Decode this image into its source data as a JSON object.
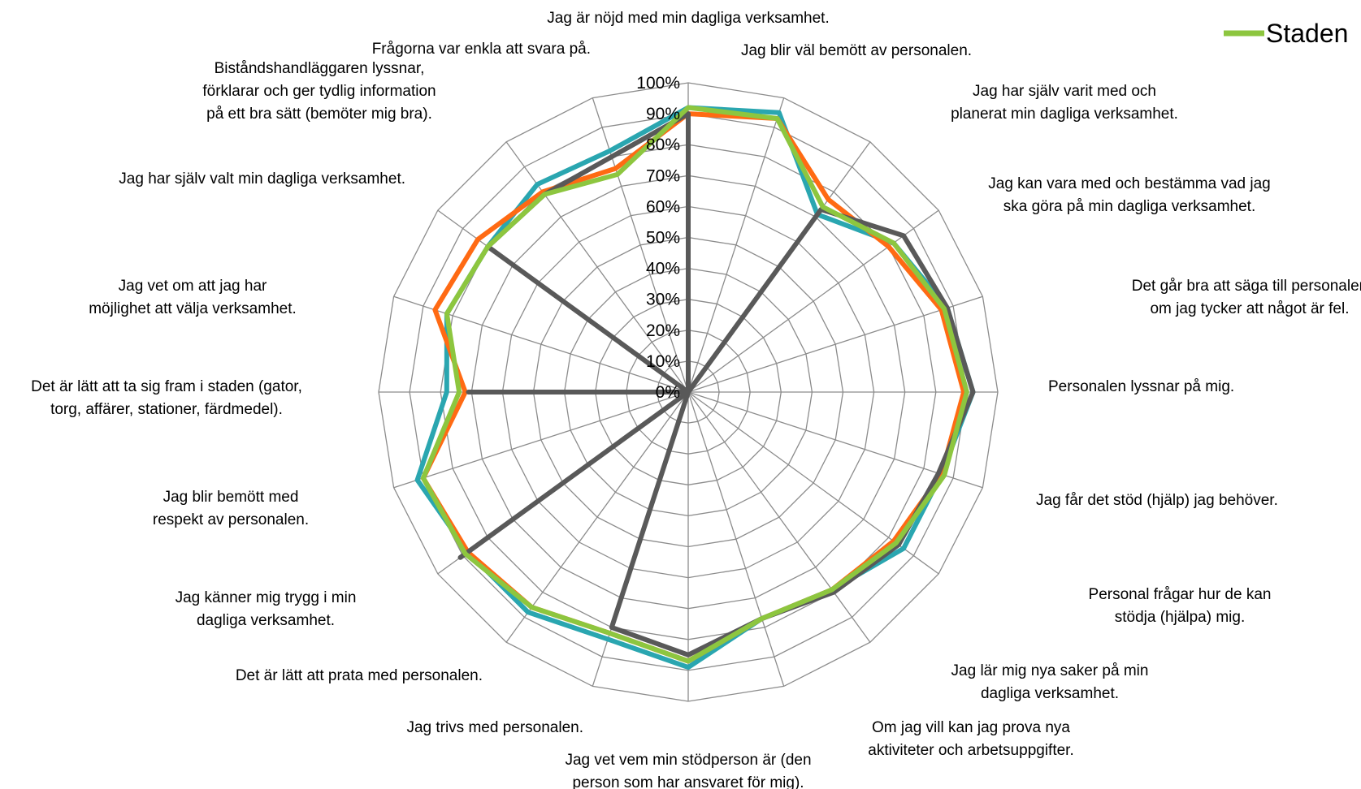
{
  "chart_data": {
    "type": "radar",
    "title": "",
    "axes": [
      "Jag är nöjd med min dagliga verksamhet.",
      "Jag blir väl bemött av personalen.",
      "Jag har själv varit med och planerat min dagliga verksamhet.",
      "Jag kan vara med och bestämma vad jag ska göra på min dagliga verksamhet.",
      "Det går bra att säga till personalen om jag tycker att något är fel.",
      "Personalen lyssnar på mig.",
      "Jag får det stöd (hjälp) jag behöver.",
      "Personal frågar hur de kan stödja (hjälpa) mig.",
      "Jag lär mig nya saker på min dagliga verksamhet.",
      "Om jag vill kan jag prova nya aktiviteter och arbetsuppgifter.",
      "Jag vet vem min stödperson är (den person som har ansvaret för mig).",
      "Jag trivs med personalen.",
      "Det är lätt att prata med personalen.",
      "Jag känner mig trygg i min dagliga verksamhet.",
      "Jag blir bemött med respekt av personalen.",
      "Det är lätt att ta sig fram i staden (gator, torg, affärer, stationer, färdmedel).",
      "Jag vet om att jag har möjlighet att välja verksamhet.",
      "Jag har själv valt min dagliga verksamhet.",
      "Biståndshandläggaren lyssnar, förklarar och ger tydlig information på ett bra sätt (bemöter mig bra).",
      "Frågorna var enkla att svara på."
    ],
    "r_ticks": [
      "0%",
      "10%",
      "20%",
      "30%",
      "40%",
      "50%",
      "60%",
      "70%",
      "80%",
      "90%",
      "100%"
    ],
    "rlim": [
      0,
      100
    ],
    "grid": true,
    "legend_position": "top-right",
    "legend_entries": [
      "Staden"
    ],
    "series": [
      {
        "color": "#2aa6b0",
        "values": [
          92,
          95,
          71,
          82,
          88,
          92,
          86,
          86,
          79,
          77,
          89,
          84,
          88,
          88,
          92,
          78,
          82,
          80,
          83,
          82
        ]
      },
      {
        "color": "#ff6a13",
        "values": [
          90,
          93,
          77,
          80,
          86,
          89,
          86,
          82,
          79,
          77,
          87,
          82,
          86,
          88,
          90,
          72,
          86,
          84,
          80,
          76
        ]
      },
      {
        "color": "#595959",
        "values": [
          90,
          0,
          73,
          86,
          88,
          92,
          85,
          84,
          80,
          77,
          85,
          80,
          0,
          91,
          0,
          71,
          0,
          80,
          79,
          80
        ]
      },
      {
        "name": "Staden",
        "color": "#8dc63f",
        "values": [
          92,
          93,
          74,
          82,
          87,
          90,
          87,
          83,
          79,
          77,
          87,
          82,
          86,
          89,
          90,
          74,
          82,
          80,
          79,
          74
        ]
      }
    ]
  }
}
